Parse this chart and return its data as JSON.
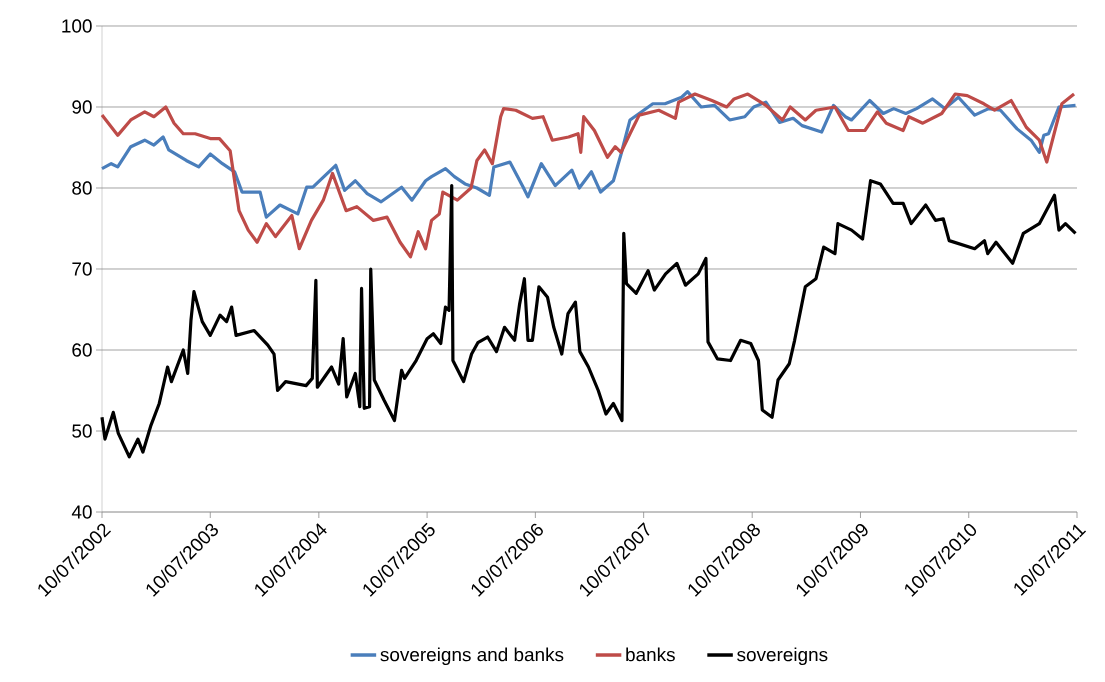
{
  "chart_data": {
    "type": "line",
    "xlim": [
      "2002-07-10",
      "2011-07-10"
    ],
    "xticks": [
      {
        "value": "2002-07-10",
        "label": "10/07/2002"
      },
      {
        "value": "2003-07-10",
        "label": "10/07/2003"
      },
      {
        "value": "2004-07-10",
        "label": "10/07/2004"
      },
      {
        "value": "2005-07-10",
        "label": "10/07/2005"
      },
      {
        "value": "2006-07-10",
        "label": "10/07/2006"
      },
      {
        "value": "2007-07-10",
        "label": "10/07/2007"
      },
      {
        "value": "2008-07-10",
        "label": "10/07/2008"
      },
      {
        "value": "2009-07-10",
        "label": "10/07/2009"
      },
      {
        "value": "2010-07-10",
        "label": "10/07/2010"
      },
      {
        "value": "2011-07-10",
        "label": "10/07/2011"
      }
    ],
    "ylim": [
      40,
      100
    ],
    "yticks": [
      40,
      50,
      60,
      70,
      80,
      90,
      100
    ],
    "grid": "y",
    "legend": "bottom",
    "marker": "none",
    "line_style": "solid",
    "series": [
      {
        "name": "sovereigns and banks",
        "color": "#4a7ebb",
        "x": [
          "2002-07-10",
          "2002-08-10",
          "2002-09-01",
          "2002-10-15",
          "2002-12-01",
          "2003-01-01",
          "2003-02-01",
          "2003-02-20",
          "2003-04-20",
          "2003-06-01",
          "2003-07-10",
          "2003-08-20",
          "2003-09-30",
          "2003-10-25",
          "2003-12-25",
          "2004-01-15",
          "2004-03-01",
          "2004-04-30",
          "2004-05-30",
          "2004-06-20",
          "2004-09-05",
          "2004-10-05",
          "2004-11-10",
          "2004-12-20",
          "2005-02-05",
          "2005-04-15",
          "2005-05-20",
          "2005-07-05",
          "2005-07-25",
          "2005-09-10",
          "2005-10-10",
          "2005-11-15",
          "2005-12-25",
          "2006-02-05",
          "2006-02-20",
          "2006-04-15",
          "2006-05-30",
          "2006-06-15",
          "2006-07-30",
          "2006-09-15",
          "2006-11-10",
          "2006-12-05",
          "2007-01-15",
          "2007-02-15",
          "2007-03-30",
          "2007-04-25",
          "2007-05-25",
          "2007-06-25",
          "2007-08-10",
          "2007-09-20",
          "2007-11-15",
          "2007-12-05",
          "2008-01-20",
          "2008-03-05",
          "2008-04-25",
          "2008-06-15",
          "2008-07-15",
          "2008-08-25",
          "2008-10-10",
          "2008-11-25",
          "2008-12-25",
          "2009-03-01",
          "2009-04-10",
          "2009-05-20",
          "2009-06-10",
          "2009-08-10",
          "2009-09-25",
          "2009-10-30",
          "2009-12-10",
          "2010-01-15",
          "2010-03-10",
          "2010-04-20",
          "2010-06-05",
          "2010-07-30",
          "2010-09-15",
          "2010-10-25",
          "2010-12-20",
          "2011-02-05",
          "2011-03-05",
          "2011-03-20",
          "2011-04-05",
          "2011-05-10",
          "2011-07-05"
        ],
        "values": [
          82.4,
          83,
          82.6,
          85.1,
          85.9,
          85.3,
          86.3,
          84.7,
          83.4,
          82.6,
          84.2,
          83,
          82,
          79.5,
          79.5,
          76.4,
          77.9,
          76.8,
          80.1,
          80.1,
          82.8,
          79.7,
          80.9,
          79.3,
          78.3,
          80.1,
          78.5,
          80.9,
          81.4,
          82.4,
          81.4,
          80.5,
          80,
          79.1,
          82.6,
          83.2,
          80.1,
          78.9,
          83,
          80.3,
          82.2,
          80,
          82,
          79.5,
          80.9,
          84.2,
          88.4,
          89.2,
          90.4,
          90.4,
          91.2,
          91.9,
          90,
          90.2,
          88.4,
          88.8,
          90,
          90.6,
          88.1,
          88.6,
          87.7,
          86.9,
          90.2,
          88.8,
          88.4,
          90.8,
          89.2,
          89.8,
          89.2,
          89.8,
          91,
          89.8,
          91.2,
          89,
          89.8,
          89.6,
          87.3,
          85.9,
          84.4,
          86.5,
          86.7,
          90,
          90.2
        ]
      },
      {
        "name": "banks",
        "color": "#be4b48",
        "x": [
          "2002-07-10",
          "2002-09-01",
          "2002-10-15",
          "2002-12-01",
          "2003-01-01",
          "2003-02-10",
          "2003-03-10",
          "2003-04-10",
          "2003-05-20",
          "2003-07-10",
          "2003-08-10",
          "2003-09-15",
          "2003-10-15",
          "2003-11-15",
          "2003-12-15",
          "2004-01-15",
          "2004-02-15",
          "2004-04-10",
          "2004-05-05",
          "2004-06-15",
          "2004-07-25",
          "2004-08-25",
          "2004-10-10",
          "2004-11-15",
          "2005-01-10",
          "2005-02-25",
          "2005-04-10",
          "2005-05-15",
          "2005-06-10",
          "2005-07-05",
          "2005-07-25",
          "2005-08-20",
          "2005-09-01",
          "2005-10-20",
          "2005-12-05",
          "2005-12-25",
          "2006-01-20",
          "2006-02-15",
          "2006-03-15",
          "2006-03-25",
          "2006-05-05",
          "2006-06-30",
          "2006-08-05",
          "2006-09-05",
          "2006-10-30",
          "2006-12-01",
          "2006-12-10",
          "2006-12-20",
          "2007-01-25",
          "2007-03-10",
          "2007-04-05",
          "2007-04-25",
          "2007-05-25",
          "2007-06-25",
          "2007-08-30",
          "2007-10-25",
          "2007-11-05",
          "2007-12-30",
          "2008-02-25",
          "2008-04-15",
          "2008-05-10",
          "2008-06-25",
          "2008-08-25",
          "2008-10-20",
          "2008-11-15",
          "2009-01-05",
          "2009-02-10",
          "2009-04-15",
          "2009-05-30",
          "2009-07-25",
          "2009-09-05",
          "2009-10-05",
          "2009-12-01",
          "2009-12-20",
          "2010-02-05",
          "2010-04-10",
          "2010-05-25",
          "2010-07-05",
          "2010-08-30",
          "2010-10-05",
          "2010-11-30",
          "2011-01-20",
          "2011-03-05",
          "2011-03-30",
          "2011-05-20",
          "2011-06-30"
        ],
        "values": [
          89,
          86.5,
          88.4,
          89.4,
          88.8,
          90,
          88,
          86.7,
          86.7,
          86.1,
          86.1,
          84.6,
          77.2,
          74.8,
          73.3,
          75.6,
          74,
          76.6,
          72.5,
          76,
          78.5,
          81.8,
          77.2,
          77.7,
          76,
          76.4,
          73.3,
          71.5,
          74.6,
          72.5,
          76,
          76.8,
          79.5,
          78.5,
          80,
          83.4,
          84.7,
          83,
          88.8,
          89.8,
          89.6,
          88.6,
          88.8,
          85.9,
          86.3,
          86.7,
          84.4,
          88.8,
          87.1,
          83.8,
          85.1,
          84.4,
          86.7,
          89,
          89.6,
          88.6,
          90.6,
          91.6,
          90.8,
          90,
          91,
          91.6,
          90.2,
          88.4,
          90,
          88.4,
          89.6,
          90,
          87.1,
          87.1,
          89.4,
          88,
          87.1,
          88.8,
          88,
          89.2,
          91.6,
          91.4,
          90.4,
          89.6,
          90.8,
          87.5,
          85.9,
          83.2,
          90.4,
          91.6
        ]
      },
      {
        "name": "sovereigns",
        "color": "#000000",
        "x": [
          "2002-07-10",
          "2002-07-20",
          "2002-08-17",
          "2002-09-03",
          "2002-10-10",
          "2002-11-08",
          "2002-11-25",
          "2002-12-22",
          "2003-01-19",
          "2003-02-16",
          "2003-03-01",
          "2003-04-10",
          "2003-04-25",
          "2003-05-06",
          "2003-05-16",
          "2003-06-13",
          "2003-07-10",
          "2003-08-12",
          "2003-09-03",
          "2003-09-20",
          "2003-10-05",
          "2003-12-05",
          "2004-01-20",
          "2004-02-10",
          "2004-02-22",
          "2004-03-20",
          "2004-05-28",
          "2004-06-18",
          "2004-06-30",
          "2004-07-05",
          "2004-08-22",
          "2004-09-15",
          "2004-09-30",
          "2004-10-12",
          "2004-11-10",
          "2004-11-25",
          "2004-12-01",
          "2004-12-10",
          "2004-12-28",
          "2005-01-01",
          "2005-01-13",
          "2005-02-15",
          "2005-03-22",
          "2005-04-15",
          "2005-04-25",
          "2005-06-03",
          "2005-07-10",
          "2005-07-31",
          "2005-08-25",
          "2005-09-10",
          "2005-09-22",
          "2005-10-01",
          "2005-10-05",
          "2005-11-10",
          "2005-12-07",
          "2005-12-28",
          "2006-01-30",
          "2006-03-01",
          "2006-03-28",
          "2006-05-01",
          "2006-05-18",
          "2006-06-03",
          "2006-06-15",
          "2006-06-30",
          "2006-07-22",
          "2006-08-20",
          "2006-09-10",
          "2006-10-07",
          "2006-10-28",
          "2006-11-22",
          "2006-12-07",
          "2007-01-05",
          "2007-02-07",
          "2007-03-05",
          "2007-03-30",
          "2007-04-28",
          "2007-05-04",
          "2007-05-13",
          "2007-06-15",
          "2007-07-25",
          "2007-08-15",
          "2007-09-22",
          "2007-10-30",
          "2007-11-28",
          "2008-01-10",
          "2008-02-05",
          "2008-02-12",
          "2008-03-15",
          "2008-04-28",
          "2008-06-01",
          "2008-07-05",
          "2008-07-31",
          "2008-08-13",
          "2008-09-15",
          "2008-10-05",
          "2008-11-12",
          "2008-11-30",
          "2009-01-05",
          "2009-02-10",
          "2009-03-08",
          "2009-04-15",
          "2009-04-25",
          "2009-06-10",
          "2009-07-17",
          "2009-08-13",
          "2009-09-15",
          "2009-10-28",
          "2009-12-01",
          "2009-12-28",
          "2010-02-15",
          "2010-03-20",
          "2010-04-15",
          "2010-05-05",
          "2010-07-30",
          "2010-09-01",
          "2010-09-12",
          "2010-10-10",
          "2010-12-05",
          "2011-01-10",
          "2011-03-05",
          "2011-04-25",
          "2011-05-10",
          "2011-06-01",
          "2011-07-05"
        ],
        "values": [
          51.7,
          49,
          52.3,
          49.7,
          46.8,
          49,
          47.4,
          50.7,
          53.4,
          57.9,
          56.1,
          60,
          57.1,
          63.7,
          67.2,
          63.5,
          61.8,
          64.3,
          63.5,
          65.3,
          61.8,
          62.4,
          60.6,
          59.5,
          55,
          56.1,
          55.6,
          56.5,
          68.6,
          55.4,
          57.9,
          55.8,
          61.4,
          54.2,
          57.1,
          53,
          67.6,
          52.8,
          53,
          70,
          56.3,
          53.8,
          51.3,
          57.5,
          56.5,
          58.7,
          61.4,
          62,
          60.8,
          65.3,
          64.9,
          80.3,
          58.7,
          56.1,
          59.5,
          60.9,
          61.6,
          59.8,
          62.8,
          61.2,
          65.7,
          68.8,
          61.2,
          61.2,
          67.8,
          66.5,
          62.8,
          59.5,
          64.5,
          65.9,
          59.8,
          57.9,
          55,
          52.1,
          53.4,
          51.3,
          74.4,
          68.2,
          67,
          69.8,
          67.4,
          69.4,
          70.7,
          68,
          69.4,
          71.3,
          61,
          58.9,
          58.7,
          61.2,
          60.8,
          58.7,
          52.6,
          51.7,
          56.3,
          58.3,
          61.2,
          67.8,
          68.8,
          72.7,
          71.9,
          75.6,
          74.8,
          73.7,
          80.9,
          80.5,
          78.1,
          78.1,
          75.6,
          77.9,
          76,
          76.2,
          73.5,
          72.5,
          73.5,
          71.9,
          73.3,
          70.7,
          74.4,
          75.6,
          79.1,
          74.8,
          75.6,
          74.4
        ]
      }
    ]
  }
}
